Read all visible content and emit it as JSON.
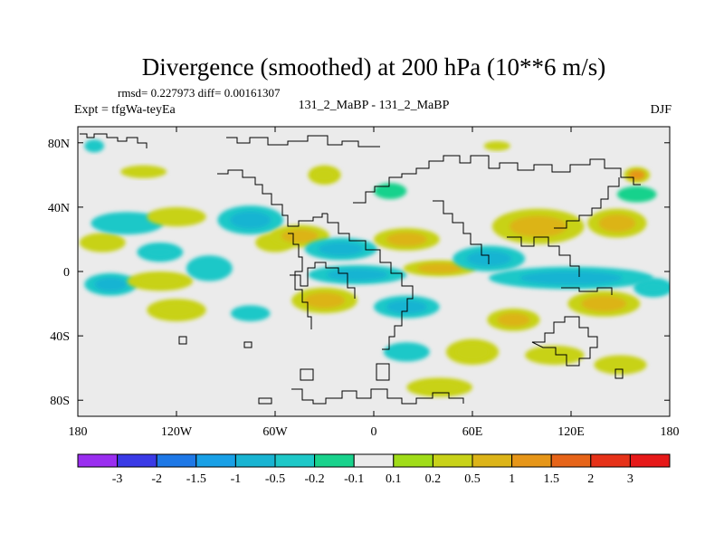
{
  "chart_data": {
    "type": "heatmap",
    "title": "Divergence (smoothed) at 200 hPa (10**6 m/s)",
    "stats": "rmsd= 0.227973 diff= 0.00161307",
    "experiment": "Expt = tfgWa-teyEa",
    "subtitle": "131_2_MaBP - 131_2_MaBP",
    "season": "DJF",
    "x_range": [
      -180,
      180
    ],
    "y_range": [
      -90,
      90
    ],
    "x_ticks": [
      {
        "value": -180,
        "label": "180"
      },
      {
        "value": -120,
        "label": "120W"
      },
      {
        "value": -60,
        "label": "60W"
      },
      {
        "value": 0,
        "label": "0"
      },
      {
        "value": 60,
        "label": "60E"
      },
      {
        "value": 120,
        "label": "120E"
      },
      {
        "value": 180,
        "label": "180"
      }
    ],
    "y_ticks": [
      {
        "value": 80,
        "label": "80N"
      },
      {
        "value": 40,
        "label": "40N"
      },
      {
        "value": 0,
        "label": "0"
      },
      {
        "value": -40,
        "label": "40S"
      },
      {
        "value": -80,
        "label": "80S"
      }
    ],
    "colorbar": {
      "levels": [
        "-3",
        "-2",
        "-1.5",
        "-1",
        "-0.5",
        "-0.2",
        "-0.1",
        "0.1",
        "0.2",
        "0.5",
        "1",
        "1.5",
        "2",
        "3"
      ],
      "colors": [
        "#9a2ef0",
        "#3a3ae6",
        "#1e78e6",
        "#19a0e6",
        "#19b4d2",
        "#1ec8c8",
        "#19d28c",
        "#ebebeb",
        "#a0dc19",
        "#c8d219",
        "#dcb419",
        "#e69619",
        "#e66419",
        "#e63219",
        "#e61919"
      ]
    },
    "features": [
      {
        "lon": -165,
        "lat": 18,
        "rx": 14,
        "ry": 6,
        "value": 0.3
      },
      {
        "lon": -150,
        "lat": 30,
        "rx": 22,
        "ry": 7,
        "value": -0.3
      },
      {
        "lon": -120,
        "lat": 34,
        "rx": 18,
        "ry": 6,
        "value": 0.3
      },
      {
        "lon": -160,
        "lat": -8,
        "rx": 16,
        "ry": 7,
        "value": -0.6
      },
      {
        "lon": -130,
        "lat": -6,
        "rx": 20,
        "ry": 6,
        "value": 0.35
      },
      {
        "lon": -130,
        "lat": 12,
        "rx": 14,
        "ry": 6,
        "value": -0.4
      },
      {
        "lon": -100,
        "lat": 2,
        "rx": 14,
        "ry": 8,
        "value": -0.3
      },
      {
        "lon": -75,
        "lat": 32,
        "rx": 20,
        "ry": 9,
        "value": -0.7
      },
      {
        "lon": -60,
        "lat": 18,
        "rx": 12,
        "ry": 6,
        "value": 0.3
      },
      {
        "lon": -45,
        "lat": 22,
        "rx": 18,
        "ry": 7,
        "value": 0.6
      },
      {
        "lon": -20,
        "lat": 14,
        "rx": 22,
        "ry": 7,
        "value": -0.6
      },
      {
        "lon": 20,
        "lat": 20,
        "rx": 20,
        "ry": 7,
        "value": 0.5
      },
      {
        "lon": -10,
        "lat": -2,
        "rx": 30,
        "ry": 6,
        "value": -0.7
      },
      {
        "lon": 40,
        "lat": 2,
        "rx": 22,
        "ry": 5,
        "value": 0.6
      },
      {
        "lon": 70,
        "lat": 8,
        "rx": 22,
        "ry": 8,
        "value": -0.6
      },
      {
        "lon": 100,
        "lat": 28,
        "rx": 28,
        "ry": 11,
        "value": 0.7
      },
      {
        "lon": 148,
        "lat": 30,
        "rx": 18,
        "ry": 9,
        "value": 0.6
      },
      {
        "lon": 160,
        "lat": 48,
        "rx": 12,
        "ry": 5,
        "value": -0.2
      },
      {
        "lon": 160,
        "lat": 60,
        "rx": 8,
        "ry": 5,
        "value": 1.2
      },
      {
        "lon": 120,
        "lat": -4,
        "rx": 50,
        "ry": 7,
        "value": -0.7
      },
      {
        "lon": 140,
        "lat": -20,
        "rx": 22,
        "ry": 8,
        "value": 0.5
      },
      {
        "lon": 170,
        "lat": -10,
        "rx": 12,
        "ry": 6,
        "value": -0.4
      },
      {
        "lon": -30,
        "lat": -18,
        "rx": 20,
        "ry": 8,
        "value": 0.6
      },
      {
        "lon": 20,
        "lat": -22,
        "rx": 20,
        "ry": 7,
        "value": -0.6
      },
      {
        "lon": -120,
        "lat": -24,
        "rx": 18,
        "ry": 7,
        "value": 0.4
      },
      {
        "lon": -75,
        "lat": -26,
        "rx": 12,
        "ry": 5,
        "value": -0.3
      },
      {
        "lon": 85,
        "lat": -30,
        "rx": 16,
        "ry": 7,
        "value": 0.5
      },
      {
        "lon": 60,
        "lat": -50,
        "rx": 16,
        "ry": 8,
        "value": 0.4
      },
      {
        "lon": 20,
        "lat": -50,
        "rx": 14,
        "ry": 6,
        "value": -0.3
      },
      {
        "lon": 110,
        "lat": -52,
        "rx": 18,
        "ry": 6,
        "value": 0.3
      },
      {
        "lon": 150,
        "lat": -58,
        "rx": 16,
        "ry": 6,
        "value": 0.3
      },
      {
        "lon": 40,
        "lat": -72,
        "rx": 20,
        "ry": 6,
        "value": 0.35
      },
      {
        "lon": -30,
        "lat": 60,
        "rx": 10,
        "ry": 6,
        "value": 0.35
      },
      {
        "lon": -140,
        "lat": 62,
        "rx": 14,
        "ry": 4,
        "value": 0.3
      },
      {
        "lon": -170,
        "lat": 78,
        "rx": 6,
        "ry": 4,
        "value": -0.3
      },
      {
        "lon": 75,
        "lat": 78,
        "rx": 8,
        "ry": 3,
        "value": 0.3
      },
      {
        "lon": 10,
        "lat": 50,
        "rx": 10,
        "ry": 5,
        "value": -0.2
      }
    ]
  }
}
